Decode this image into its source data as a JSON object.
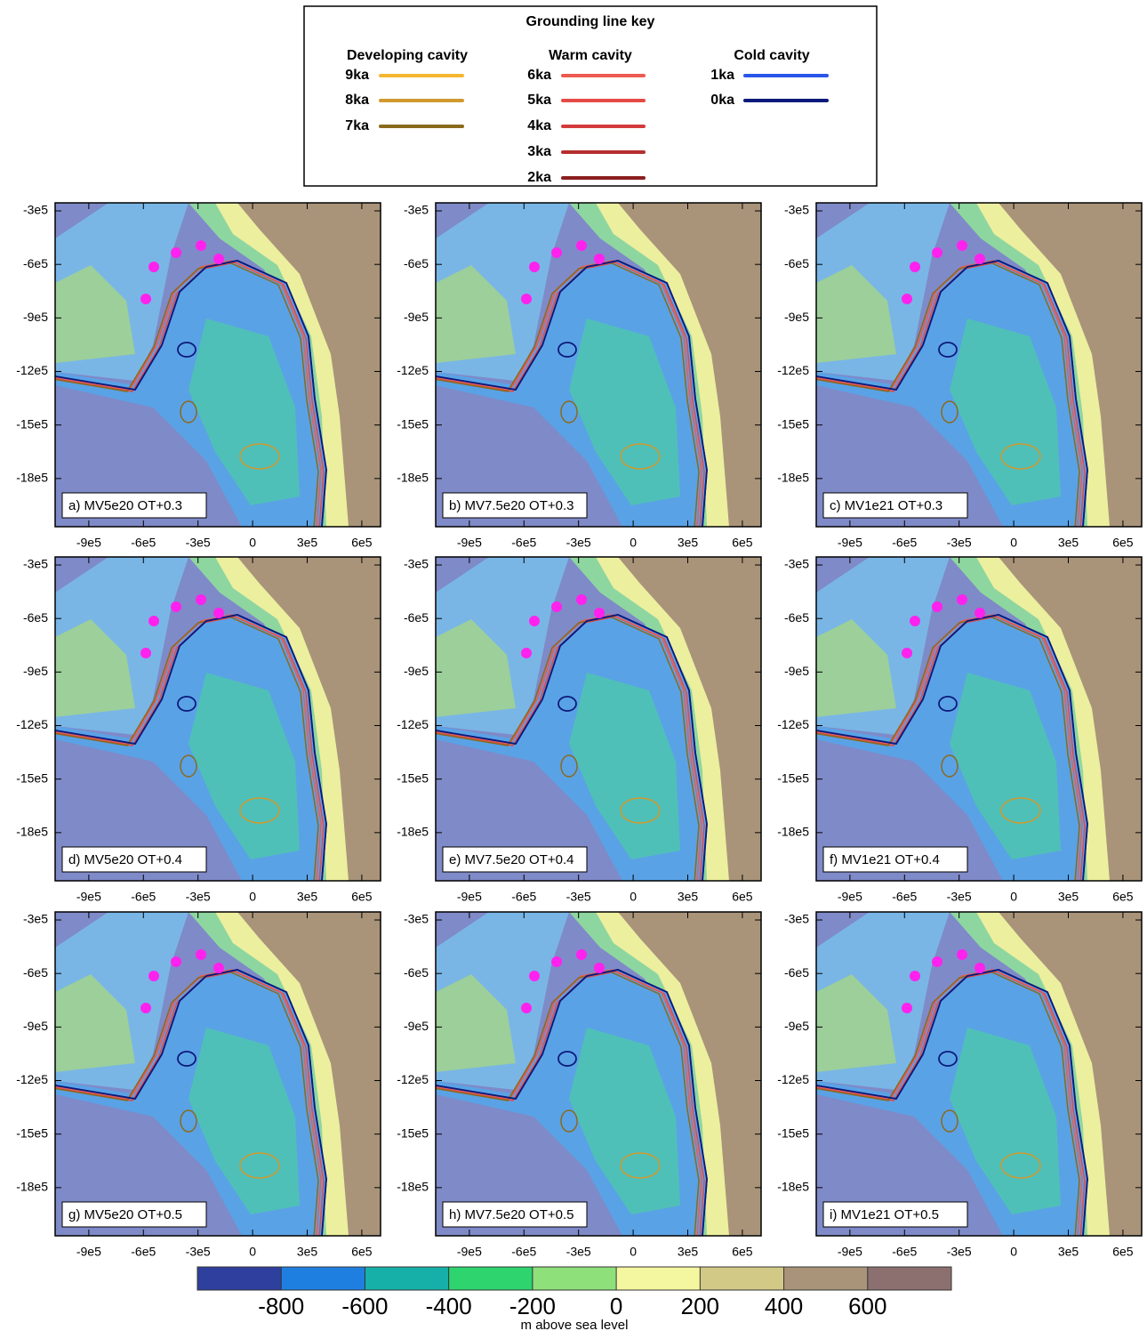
{
  "legend": {
    "title": "Grounding line key",
    "groups": [
      {
        "title": "Developing cavity",
        "entries": [
          {
            "label": "9ka",
            "color": "#f5b731"
          },
          {
            "label": "8ka",
            "color": "#d19a2e"
          },
          {
            "label": "7ka",
            "color": "#8a6a1c"
          }
        ]
      },
      {
        "title": "Warm cavity",
        "entries": [
          {
            "label": "6ka",
            "color": "#ee5a4f"
          },
          {
            "label": "5ka",
            "color": "#e44a45"
          },
          {
            "label": "4ka",
            "color": "#d33b3b"
          },
          {
            "label": "3ka",
            "color": "#b52e2e"
          },
          {
            "label": "2ka",
            "color": "#8c1f1f"
          }
        ]
      },
      {
        "title": "Cold cavity",
        "entries": [
          {
            "label": "1ka",
            "color": "#2a55e8"
          },
          {
            "label": "0ka",
            "color": "#0b1a7a"
          }
        ]
      }
    ]
  },
  "panels": [
    {
      "label": "a) MV5e20 OT+0.3"
    },
    {
      "label": "b) MV7.5e20 OT+0.3"
    },
    {
      "label": "c) MV1e21 OT+0.3"
    },
    {
      "label": "d) MV5e20 OT+0.4"
    },
    {
      "label": "e) MV7.5e20 OT+0.4"
    },
    {
      "label": "f) MV1e21 OT+0.4"
    },
    {
      "label": "g) MV5e20 OT+0.5"
    },
    {
      "label": "h) MV7.5e20 OT+0.5"
    },
    {
      "label": "i) MV1e21 OT+0.5"
    }
  ],
  "axes": {
    "xlim": [
      -1085000,
      703000
    ],
    "ylim": [
      -2070000,
      -255000
    ],
    "xticks": [
      {
        "value": -900000,
        "label": "-9e5"
      },
      {
        "value": -600000,
        "label": "-6e5"
      },
      {
        "value": -300000,
        "label": "-3e5"
      },
      0,
      {
        "value": 300000,
        "label": "3e5"
      },
      {
        "value": 600000,
        "label": "6e5"
      }
    ],
    "yticks": [
      {
        "value": -300000,
        "label": "-3e5"
      },
      {
        "value": -600000,
        "label": "-6e5"
      },
      {
        "value": -900000,
        "label": "-9e5"
      },
      {
        "value": -1200000,
        "label": "-12e5"
      },
      {
        "value": -1500000,
        "label": "-15e5"
      },
      {
        "value": -1800000,
        "label": "-18e5"
      }
    ]
  },
  "colorbar": {
    "lim": [
      -1000,
      800
    ],
    "colors": [
      "#2f3f9e",
      "#1e7fe0",
      "#16b0a8",
      "#2ed46e",
      "#8ee07a",
      "#f4f7a0",
      "#d2c987",
      "#a9947a",
      "#8c7070"
    ],
    "ticks": [
      -800,
      -600,
      -400,
      -200,
      0,
      200,
      400,
      600
    ],
    "label": "m above sea level"
  }
}
